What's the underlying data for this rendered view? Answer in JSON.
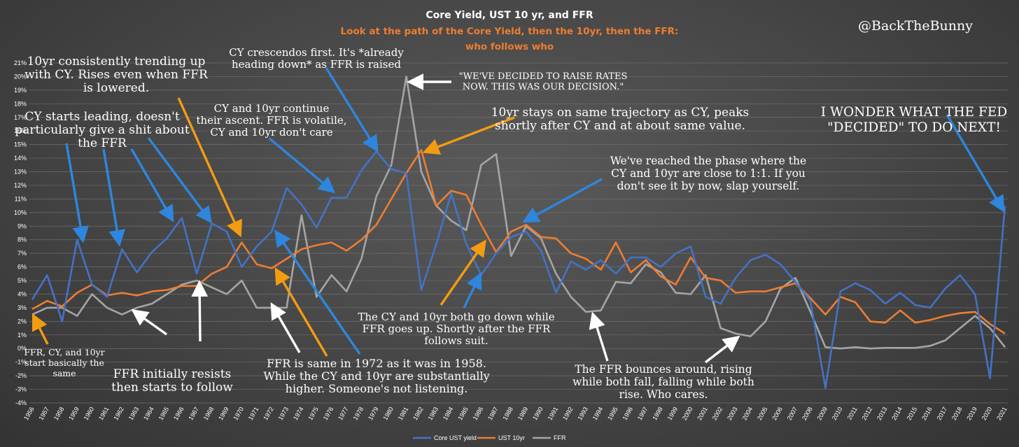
{
  "chart_data": {
    "type": "line",
    "title": "Core Yield, UST 10 yr, and FFR",
    "subtitle_lines": [
      "Look at the path of the Core Yield, then the 10yr, then the FFR:",
      "who follows who"
    ],
    "handle": "@BackTheBunny",
    "x": [
      1956,
      1957,
      1958,
      1959,
      1960,
      1961,
      1962,
      1963,
      1964,
      1965,
      1966,
      1967,
      1968,
      1969,
      1970,
      1971,
      1972,
      1973,
      1974,
      1975,
      1976,
      1977,
      1978,
      1979,
      1980,
      1981,
      1982,
      1983,
      1984,
      1985,
      1986,
      1987,
      1988,
      1989,
      1990,
      1991,
      1992,
      1993,
      1994,
      1995,
      1996,
      1997,
      1998,
      1999,
      2000,
      2001,
      2002,
      2003,
      2004,
      2005,
      2006,
      2007,
      2008,
      2009,
      2010,
      2011,
      2012,
      2013,
      2014,
      2015,
      2016,
      2017,
      2018,
      2019,
      2020,
      2021
    ],
    "ylim": [
      -4,
      21
    ],
    "yticks": [
      -4,
      -3,
      -2,
      -1,
      0,
      1,
      2,
      3,
      4,
      5,
      6,
      7,
      8,
      9,
      10,
      11,
      12,
      13,
      14,
      15,
      16,
      17,
      18,
      19,
      20,
      21
    ],
    "ytick_suffix": "%",
    "grid": true,
    "legend_position": "bottom",
    "colors": {
      "core": "#4472c4",
      "ust": "#ed7d31",
      "ffr": "#a5a5a5",
      "arrow_blue": "#2e86de",
      "arrow_orange": "#f39c12",
      "arrow_white": "#ffffff"
    },
    "series": [
      {
        "name": "Core UST yield",
        "key": "core",
        "values": [
          3.6,
          5.4,
          2.0,
          8.0,
          4.7,
          3.8,
          7.3,
          5.6,
          7.1,
          8.1,
          9.6,
          5.5,
          9.2,
          8.6,
          6.0,
          7.5,
          8.6,
          11.8,
          10.6,
          8.9,
          11.1,
          11.1,
          13.1,
          14.5,
          13.2,
          12.9,
          4.3,
          7.7,
          11.4,
          7.7,
          5.4,
          7.0,
          8.2,
          8.6,
          7.2,
          4.1,
          6.4,
          5.8,
          6.5,
          5.5,
          6.7,
          6.7,
          6.0,
          7.0,
          7.5,
          3.8,
          3.3,
          5.2,
          6.5,
          6.9,
          6.2,
          4.9,
          3.5,
          -2.9,
          4.2,
          4.8,
          4.3,
          3.3,
          4.1,
          3.2,
          3.0,
          4.4,
          5.4,
          4.0,
          -2.2,
          10.5
        ]
      },
      {
        "name": "UST 10yr",
        "key": "ust",
        "values": [
          2.9,
          3.5,
          3.1,
          4.1,
          4.7,
          3.9,
          4.1,
          3.9,
          4.2,
          4.3,
          4.6,
          4.6,
          5.5,
          6.0,
          7.8,
          6.2,
          5.9,
          6.6,
          7.3,
          7.6,
          7.8,
          7.2,
          8.0,
          9.1,
          11.0,
          12.9,
          14.6,
          10.5,
          11.6,
          11.3,
          9.1,
          7.1,
          8.6,
          9.1,
          8.2,
          8.1,
          7.0,
          6.6,
          5.8,
          7.8,
          5.6,
          6.5,
          5.3,
          4.7,
          6.7,
          5.2,
          5.0,
          4.1,
          4.2,
          4.2,
          4.5,
          4.8,
          3.7,
          2.5,
          3.8,
          3.4,
          2.0,
          1.9,
          2.8,
          1.9,
          2.1,
          2.4,
          2.6,
          2.7,
          1.8,
          1.1
        ]
      },
      {
        "name": "FFR",
        "key": "ffr",
        "values": [
          2.5,
          3.0,
          3.0,
          2.4,
          4.0,
          3.0,
          2.5,
          3.0,
          3.3,
          4.0,
          4.7,
          5.0,
          4.5,
          4.0,
          5.0,
          3.0,
          3.0,
          3.0,
          9.8,
          3.8,
          5.4,
          4.2,
          6.6,
          11.2,
          13.5,
          20.0,
          13.0,
          10.5,
          9.4,
          8.7,
          13.5,
          14.3,
          6.8,
          9.0,
          8.1,
          5.5,
          3.8,
          2.7,
          2.8,
          4.9,
          4.8,
          6.2,
          5.6,
          4.1,
          4.0,
          5.4,
          1.5,
          1.1,
          0.9,
          2.0,
          4.4,
          5.2,
          2.7,
          0.1,
          0.0,
          0.1,
          0.0,
          0.05,
          0.05,
          0.05,
          0.2,
          0.6,
          1.5,
          2.4,
          1.5,
          0.1
        ]
      }
    ],
    "annotations": [
      {
        "id": "a1",
        "lines": [
          "FFR, CY, and 10yr",
          "start basically the",
          "same"
        ]
      },
      {
        "id": "a2",
        "lines": [
          "CY starts leading, doesn't",
          "particularly give a shit about",
          "the FFR"
        ]
      },
      {
        "id": "a3",
        "lines": [
          "10yr consistently trending up",
          "with CY. Rises even when FFR",
          "is lowered."
        ]
      },
      {
        "id": "a4",
        "lines": [
          "FFR initially resists",
          "then starts to follow"
        ]
      },
      {
        "id": "a5",
        "lines": [
          "CY and 10yr continue",
          "their ascent. FFR is volatile,",
          "CY and 10yr don't care"
        ]
      },
      {
        "id": "a6",
        "lines": [
          "CY crescendos first. It's *already",
          "heading down* as FFR is raised"
        ]
      },
      {
        "id": "a7",
        "lines": [
          "\"WE'VE DECIDED TO RAISE RATES",
          "NOW. THIS WAS OUR DECISION.\""
        ]
      },
      {
        "id": "a8",
        "lines": [
          "10yr stays on same trajectory as CY, peaks",
          "shortly after CY and at about same value."
        ]
      },
      {
        "id": "a9",
        "lines": [
          "We've reached the phase where the",
          "CY and 10yr are close to 1:1. If you",
          "don't see it by now, slap yourself."
        ]
      },
      {
        "id": "a10",
        "lines": [
          "I WONDER WHAT THE FED",
          "\"DECIDED\" TO DO NEXT!"
        ]
      },
      {
        "id": "a11",
        "lines": [
          "FFR is same in 1972 as it was in 1958.",
          "While the CY and 10yr are substantially",
          "higher. Someone's not listening."
        ]
      },
      {
        "id": "a12",
        "lines": [
          "The CY and 10yr both go down while",
          "FFR goes up. Shortly after the FFR",
          "follows suit."
        ]
      },
      {
        "id": "a13",
        "lines": [
          "The FFR bounces around, rising",
          "while both fall, falling while both",
          "rise. Who cares."
        ]
      }
    ]
  }
}
